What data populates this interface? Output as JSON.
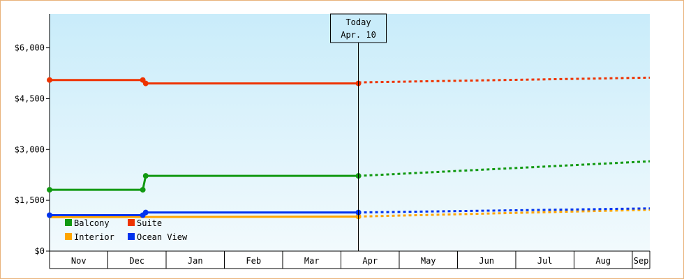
{
  "chart_data": {
    "type": "line",
    "title": "",
    "xlabel": "",
    "ylabel": "",
    "ylim": [
      0,
      7000
    ],
    "y_ticks": [
      "$0",
      "$1,500",
      "$3,000",
      "$4,500",
      "$6,000"
    ],
    "y_tick_values": [
      0,
      1500,
      3000,
      4500,
      6000
    ],
    "months": [
      "Nov",
      "Dec",
      "Jan",
      "Feb",
      "Mar",
      "Apr",
      "May",
      "Jun",
      "Jul",
      "Aug",
      "Sep"
    ],
    "x_range": [
      0,
      10.3
    ],
    "today": {
      "line1": "Today",
      "line2": "Apr. 10",
      "x": 5.3
    },
    "legend_placement": "bottom-left",
    "series": [
      {
        "name": "Balcony",
        "color": "#119911",
        "history": [
          [
            0,
            1810
          ],
          [
            1.6,
            1810
          ],
          [
            1.65,
            2220
          ],
          [
            5.3,
            2220
          ]
        ],
        "forecast": [
          [
            5.3,
            2220
          ],
          [
            10.3,
            2650
          ]
        ],
        "markers": [
          0,
          1.6,
          1.65,
          5.3
        ]
      },
      {
        "name": "Suite",
        "color": "#ee3300",
        "history": [
          [
            0,
            5050
          ],
          [
            1.6,
            5050
          ],
          [
            1.65,
            4950
          ],
          [
            5.3,
            4950
          ]
        ],
        "forecast": [
          [
            5.3,
            4980
          ],
          [
            10.3,
            5120
          ]
        ],
        "markers": [
          0,
          1.6,
          1.65,
          5.3
        ]
      },
      {
        "name": "Interior",
        "color": "#ffa500",
        "history": [
          [
            0,
            1000
          ],
          [
            5.3,
            1020
          ]
        ],
        "forecast": [
          [
            5.3,
            1020
          ],
          [
            10.3,
            1220
          ]
        ],
        "markers": [
          5.3
        ]
      },
      {
        "name": "Ocean View",
        "color": "#0033ee",
        "history": [
          [
            0,
            1060
          ],
          [
            1.6,
            1060
          ],
          [
            1.65,
            1140
          ],
          [
            5.3,
            1140
          ]
        ],
        "forecast": [
          [
            5.3,
            1140
          ],
          [
            10.3,
            1260
          ]
        ],
        "markers": [
          0,
          1.6,
          1.65,
          5.3
        ]
      }
    ]
  }
}
